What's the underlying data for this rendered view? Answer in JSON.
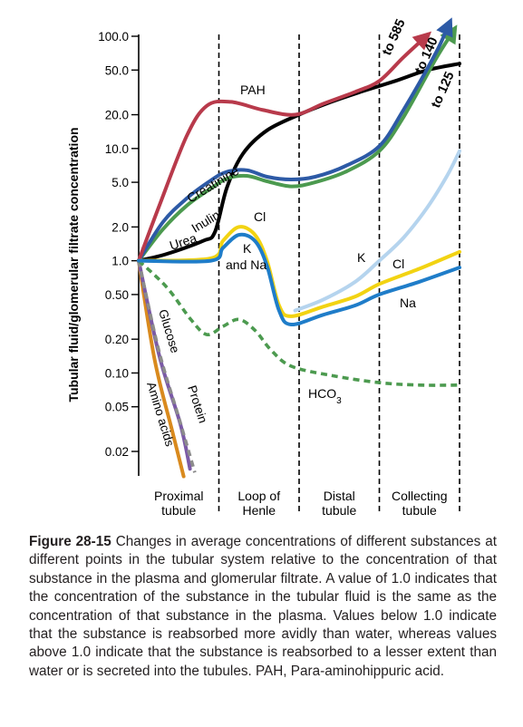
{
  "caption": {
    "label": "Figure 28-15",
    "text": "Changes in average concentrations of different substances at different points in the tubular system relative to the concentration of that substance in the plasma and glomerular filtrate. A value of 1.0 indicates that the concentration of the substance in the tubular fluid is the same as the concentration of that substance in the plasma. Values below 1.0 indicate that the substance is reabsorbed more avidly than water, whereas values above 1.0 indicate that the substance is reabsorbed to a lesser extent than water or is secreted into the tubules. PAH, Para-aminohippuric acid."
  },
  "chart_data": {
    "type": "line",
    "ylabel": "Tubular fluid/glomerular filtrate concentration",
    "yscale": "log",
    "ylim": [
      0.015,
      110
    ],
    "yticks": [
      {
        "value": 100,
        "label": "100.0"
      },
      {
        "value": 50,
        "label": "50.0"
      },
      {
        "value": 20,
        "label": "20.0"
      },
      {
        "value": 10,
        "label": "10.0"
      },
      {
        "value": 5,
        "label": "5.0"
      },
      {
        "value": 2,
        "label": "2.0"
      },
      {
        "value": 1,
        "label": "1.0"
      },
      {
        "value": 0.5,
        "label": "0.50"
      },
      {
        "value": 0.2,
        "label": "0.20"
      },
      {
        "value": 0.1,
        "label": "0.10"
      },
      {
        "value": 0.05,
        "label": "0.05"
      },
      {
        "value": 0.02,
        "label": "0.02"
      }
    ],
    "segments": [
      {
        "lines": [
          "Proximal",
          "tubule"
        ],
        "start": 0,
        "end": 1
      },
      {
        "lines": [
          "Loop of",
          "Henle"
        ],
        "start": 1,
        "end": 2
      },
      {
        "lines": [
          "Distal",
          "tubule"
        ],
        "start": 2,
        "end": 3
      },
      {
        "lines": [
          "Collecting",
          "tubule"
        ],
        "start": 3,
        "end": 4
      }
    ],
    "series": [
      {
        "name": "PAH",
        "color": "#b83a4b",
        "dashed": false,
        "arrow": true,
        "arrow_label": "to 585",
        "points": [
          [
            0,
            1
          ],
          [
            0.25,
            3
          ],
          [
            0.6,
            13
          ],
          [
            0.85,
            24
          ],
          [
            1.15,
            26
          ],
          [
            1.55,
            22
          ],
          [
            1.95,
            20
          ],
          [
            2.3,
            25
          ],
          [
            2.7,
            32
          ],
          [
            3.0,
            40
          ],
          [
            3.3,
            65
          ],
          [
            3.55,
            95
          ]
        ]
      },
      {
        "name": "Creatinine",
        "color": "#2d5aa6",
        "dashed": false,
        "arrow": true,
        "arrow_label": "to 140",
        "points": [
          [
            0,
            1
          ],
          [
            0.3,
            2.2
          ],
          [
            0.6,
            3.6
          ],
          [
            0.9,
            5.2
          ],
          [
            1.1,
            6.2
          ],
          [
            1.35,
            6.4
          ],
          [
            1.6,
            5.6
          ],
          [
            1.9,
            5.3
          ],
          [
            2.2,
            5.6
          ],
          [
            2.6,
            7.1
          ],
          [
            3.0,
            10.5
          ],
          [
            3.3,
            22
          ],
          [
            3.7,
            70
          ],
          [
            3.85,
            120
          ]
        ]
      },
      {
        "name": "Inulin",
        "color": "#4c9a4f",
        "dashed": false,
        "arrow": true,
        "arrow_label": "to 125",
        "points": [
          [
            0,
            1
          ],
          [
            0.3,
            1.9
          ],
          [
            0.6,
            3.1
          ],
          [
            0.9,
            4.4
          ],
          [
            1.1,
            5.4
          ],
          [
            1.35,
            5.7
          ],
          [
            1.6,
            5.1
          ],
          [
            1.9,
            4.6
          ],
          [
            2.2,
            5.0
          ],
          [
            2.6,
            6.3
          ],
          [
            3.0,
            9.5
          ],
          [
            3.3,
            19
          ],
          [
            3.7,
            62
          ],
          [
            3.9,
            105
          ]
        ]
      },
      {
        "name": "Urea",
        "color": "#000000",
        "dashed": false,
        "arrow": false,
        "points": [
          [
            0,
            1
          ],
          [
            0.35,
            1.15
          ],
          [
            0.8,
            1.5
          ],
          [
            0.95,
            1.8
          ],
          [
            1.1,
            4.5
          ],
          [
            1.3,
            9
          ],
          [
            1.6,
            14.5
          ],
          [
            2.0,
            20
          ],
          [
            2.4,
            26
          ],
          [
            2.8,
            32.5
          ],
          [
            3.2,
            40
          ],
          [
            3.6,
            50
          ],
          [
            4.0,
            57
          ]
        ]
      },
      {
        "name": "Cl",
        "color": "#f2d312",
        "dashed": false,
        "arrow": false,
        "points": [
          [
            0,
            1
          ],
          [
            0.9,
            1.05
          ],
          [
            1.05,
            1.5
          ],
          [
            1.25,
            2.0
          ],
          [
            1.45,
            1.7
          ],
          [
            1.6,
            1.0
          ],
          [
            1.75,
            0.4
          ],
          [
            1.9,
            0.32
          ],
          [
            2.3,
            0.39
          ],
          [
            2.7,
            0.48
          ],
          [
            3.0,
            0.62
          ],
          [
            3.5,
            0.85
          ],
          [
            4.0,
            1.2
          ]
        ]
      },
      {
        "name": "Na",
        "color": "#1f7dc9",
        "dashed": false,
        "arrow": false,
        "points": [
          [
            0,
            1
          ],
          [
            0.9,
            1.0
          ],
          [
            1.05,
            1.3
          ],
          [
            1.25,
            1.7
          ],
          [
            1.45,
            1.5
          ],
          [
            1.6,
            0.9
          ],
          [
            1.75,
            0.36
          ],
          [
            1.9,
            0.27
          ],
          [
            2.3,
            0.33
          ],
          [
            2.7,
            0.4
          ],
          [
            3.0,
            0.5
          ],
          [
            3.5,
            0.65
          ],
          [
            4.0,
            0.87
          ]
        ]
      },
      {
        "name": "K",
        "color": "#b5d4ee",
        "dashed": false,
        "arrow": false,
        "points": [
          [
            1.95,
            0.36
          ],
          [
            2.3,
            0.45
          ],
          [
            2.7,
            0.65
          ],
          [
            3.0,
            1.0
          ],
          [
            3.3,
            1.6
          ],
          [
            3.6,
            3.0
          ],
          [
            3.85,
            5.8
          ],
          [
            4.0,
            9.5
          ]
        ]
      },
      {
        "name": "HCO3",
        "color": "#4c9a4f",
        "dashed": true,
        "arrow": false,
        "points": [
          [
            0,
            1
          ],
          [
            0.35,
            0.58
          ],
          [
            0.65,
            0.3
          ],
          [
            0.85,
            0.22
          ],
          [
            1.05,
            0.26
          ],
          [
            1.25,
            0.3
          ],
          [
            1.45,
            0.24
          ],
          [
            1.65,
            0.16
          ],
          [
            1.9,
            0.115
          ],
          [
            2.4,
            0.095
          ],
          [
            3.0,
            0.082
          ],
          [
            3.5,
            0.078
          ],
          [
            4.0,
            0.078
          ]
        ]
      },
      {
        "name": "Glucose",
        "color": "#8c8c8c",
        "dashed": true,
        "arrow": false,
        "points": [
          [
            0,
            1
          ],
          [
            0.25,
            0.16
          ],
          [
            0.5,
            0.04
          ],
          [
            0.7,
            0.013
          ]
        ]
      },
      {
        "name": "Protein",
        "color": "#7b5aa6",
        "dashed": false,
        "arrow": false,
        "points": [
          [
            0,
            1
          ],
          [
            0.26,
            0.14
          ],
          [
            0.52,
            0.035
          ],
          [
            0.64,
            0.014
          ]
        ]
      },
      {
        "name": "Amino acids",
        "color": "#d98a1e",
        "dashed": false,
        "arrow": false,
        "points": [
          [
            0,
            1
          ],
          [
            0.2,
            0.13
          ],
          [
            0.42,
            0.03
          ],
          [
            0.56,
            0.012
          ]
        ]
      }
    ],
    "labels": [
      {
        "text": "PAH",
        "series": "PAH"
      },
      {
        "text": "Creatinine",
        "series": "Creatinine"
      },
      {
        "text": "Inulin",
        "series": "Inulin"
      },
      {
        "text": "Urea",
        "series": "Urea"
      },
      {
        "text": "Cl",
        "series": "Cl"
      },
      {
        "text": "K",
        "series": "Na"
      },
      {
        "text": "and Na",
        "series": "Na"
      },
      {
        "text": "K",
        "series": "K"
      },
      {
        "text": "Cl",
        "series": "Cl"
      },
      {
        "text": "Na",
        "series": "Na"
      },
      {
        "text": "HCO",
        "sub": "3",
        "series": "HCO3"
      },
      {
        "text": "Glucose",
        "series": "Glucose"
      },
      {
        "text": "Protein",
        "series": "Protein"
      },
      {
        "text": "Amino acids",
        "series": "Amino acids"
      }
    ]
  }
}
